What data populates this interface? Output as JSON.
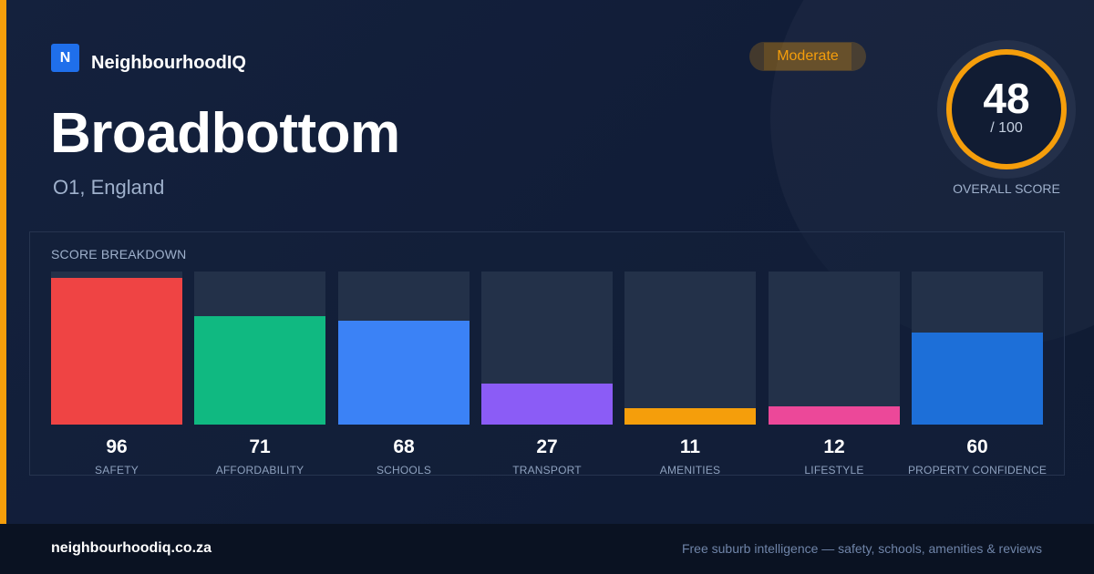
{
  "brand": {
    "logo_letter": "N",
    "name": "NeighbourhoodIQ"
  },
  "rating_badge": "Moderate",
  "location": {
    "name": "Broadbottom",
    "region": "O1, England"
  },
  "overall": {
    "score": "48",
    "max": "/ 100",
    "caption": "OVERALL SCORE",
    "fraction": 0.48
  },
  "breakdown": {
    "title": "SCORE BREAKDOWN",
    "items": [
      {
        "label": "SAFETY",
        "value": 96,
        "color": "#ef4444"
      },
      {
        "label": "AFFORDABILITY",
        "value": 71,
        "color": "#10b981"
      },
      {
        "label": "SCHOOLS",
        "value": 68,
        "color": "#3b82f6"
      },
      {
        "label": "TRANSPORT",
        "value": 27,
        "color": "#8b5cf6"
      },
      {
        "label": "AMENITIES",
        "value": 11,
        "color": "#f59e0b"
      },
      {
        "label": "LIFESTYLE",
        "value": 12,
        "color": "#ec4899"
      },
      {
        "label": "PROPERTY CONFIDENCE",
        "value": 60,
        "color": "#1d6fd8"
      }
    ]
  },
  "chart_data": {
    "type": "bar",
    "categories": [
      "SAFETY",
      "AFFORDABILITY",
      "SCHOOLS",
      "TRANSPORT",
      "AMENITIES",
      "LIFESTYLE",
      "PROPERTY CONFIDENCE"
    ],
    "values": [
      96,
      71,
      68,
      27,
      11,
      12,
      60
    ],
    "title": "SCORE BREAKDOWN",
    "ylim": [
      0,
      100
    ]
  },
  "footer": {
    "domain": "neighbourhoodiq.co.za",
    "tagline": "Free suburb intelligence — safety, schools, amenities & reviews"
  },
  "colors": {
    "accent": "#f59e0b",
    "brand": "#1f6feb",
    "background": "#0f1b33"
  }
}
